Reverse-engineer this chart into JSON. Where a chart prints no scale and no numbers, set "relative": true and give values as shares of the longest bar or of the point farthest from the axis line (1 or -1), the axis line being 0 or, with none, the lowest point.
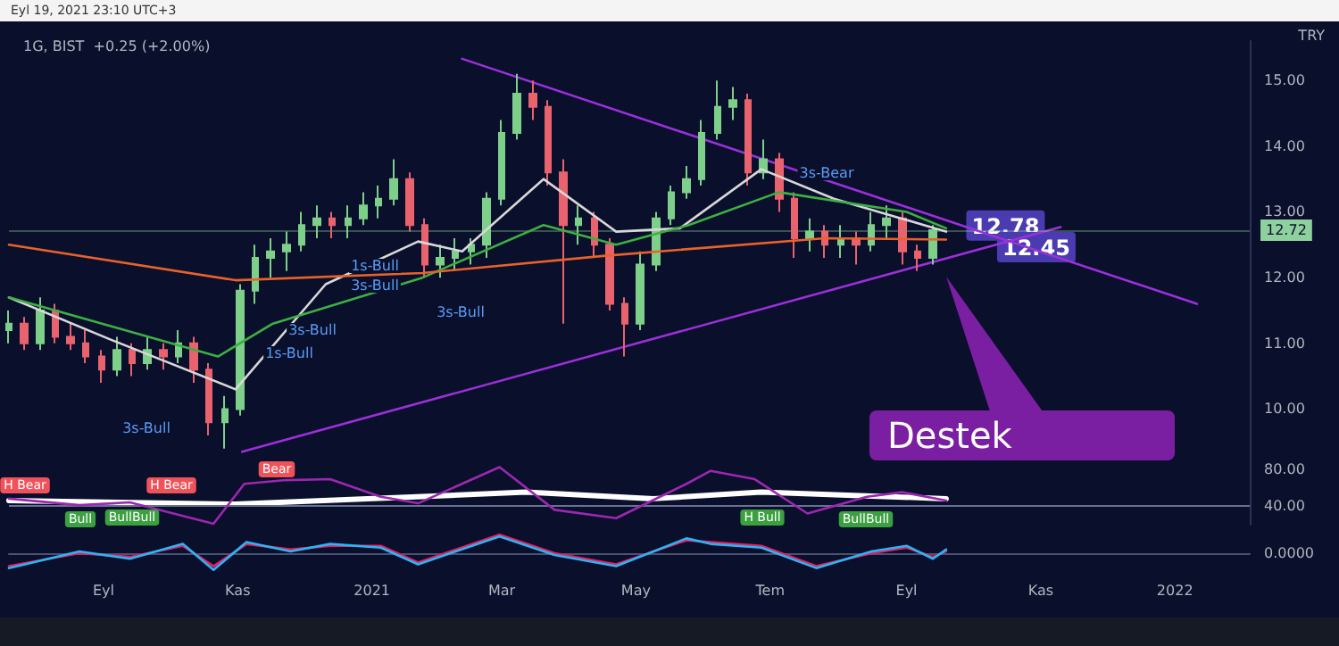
{
  "chart_data": [
    {
      "type": "candlestick",
      "title": "1G, BIST  +0.25 (+2.00%)",
      "subtitle": "Eyl 19, 2021 23:10 UTC+3",
      "xlim": [
        "2020-07-20",
        "2022-02-04"
      ],
      "ylim": [
        9.3,
        15.6
      ],
      "yticks": [
        {
          "value": 10,
          "label": "10.00"
        },
        {
          "value": 11,
          "label": "11.00"
        },
        {
          "value": 12,
          "label": "12.00"
        },
        {
          "value": 13,
          "label": "13.00"
        },
        {
          "value": 14,
          "label": "14.00"
        },
        {
          "value": 15,
          "label": "15.00"
        }
      ],
      "tick_labels": "y",
      "marker": "none",
      "line_style": "solid",
      "series": [
        {
          "x": [
            "2020-07-20",
            "2020-07-27",
            "2020-08-03",
            "2020-08-10",
            "2020-08-17",
            "2020-08-24",
            "2020-08-31",
            "2020-09-07",
            "2020-09-14",
            "2020-09-21",
            "2020-09-28",
            "2020-10-05",
            "2020-10-12",
            "2020-10-19",
            "2020-10-26",
            "2020-11-02",
            "2020-11-09",
            "2020-11-16",
            "2020-11-23",
            "2020-11-30",
            "2020-12-07",
            "2020-12-14",
            "2020-12-21",
            "2020-12-28",
            "2021-01-04",
            "2021-01-11",
            "2021-01-18",
            "2021-01-25",
            "2021-02-01",
            "2021-02-08",
            "2021-02-15",
            "2021-02-22",
            "2021-03-01",
            "2021-03-08",
            "2021-03-15",
            "2021-03-22",
            "2021-03-29",
            "2021-04-05",
            "2021-04-12",
            "2021-04-19",
            "2021-04-26",
            "2021-05-03",
            "2021-05-10",
            "2021-05-17",
            "2021-05-24",
            "2021-05-31",
            "2021-06-07",
            "2021-06-14",
            "2021-06-21",
            "2021-06-28",
            "2021-07-05",
            "2021-07-12",
            "2021-07-19",
            "2021-07-26",
            "2021-08-02",
            "2021-08-09",
            "2021-08-16",
            "2021-08-23",
            "2021-08-30",
            "2021-09-06",
            "2021-09-13"
          ],
          "ohlc": [
            [
              11.2,
              11.5,
              11.0,
              11.3
            ],
            [
              11.3,
              11.4,
              10.9,
              11.0
            ],
            [
              11.0,
              11.7,
              10.9,
              11.5
            ],
            [
              11.5,
              11.6,
              11.0,
              11.1
            ],
            [
              11.1,
              11.3,
              10.9,
              11.0
            ],
            [
              11.0,
              11.2,
              10.7,
              10.8
            ],
            [
              10.8,
              10.9,
              10.4,
              10.6
            ],
            [
              10.6,
              11.1,
              10.5,
              10.9
            ],
            [
              10.9,
              11.0,
              10.5,
              10.7
            ],
            [
              10.7,
              11.1,
              10.6,
              10.9
            ],
            [
              10.9,
              11.0,
              10.6,
              10.8
            ],
            [
              10.8,
              11.2,
              10.7,
              11.0
            ],
            [
              11.0,
              11.1,
              10.4,
              10.6
            ],
            [
              10.6,
              10.7,
              9.6,
              9.8
            ],
            [
              9.8,
              10.2,
              9.4,
              10.0
            ],
            [
              10.0,
              11.9,
              9.9,
              11.8
            ],
            [
              11.8,
              12.5,
              11.6,
              12.3
            ],
            [
              12.3,
              12.6,
              12.0,
              12.4
            ],
            [
              12.4,
              12.7,
              12.1,
              12.5
            ],
            [
              12.5,
              13.0,
              12.4,
              12.8
            ],
            [
              12.8,
              13.1,
              12.6,
              12.9
            ],
            [
              12.9,
              13.0,
              12.6,
              12.8
            ],
            [
              12.8,
              13.1,
              12.6,
              12.9
            ],
            [
              12.9,
              13.3,
              12.8,
              13.1
            ],
            [
              13.1,
              13.4,
              12.9,
              13.2
            ],
            [
              13.2,
              13.8,
              13.1,
              13.5
            ],
            [
              13.5,
              13.6,
              12.7,
              12.8
            ],
            [
              12.8,
              12.9,
              12.0,
              12.2
            ],
            [
              12.2,
              12.5,
              12.0,
              12.3
            ],
            [
              12.3,
              12.6,
              12.1,
              12.4
            ],
            [
              12.4,
              12.6,
              12.2,
              12.5
            ],
            [
              12.5,
              13.3,
              12.3,
              13.2
            ],
            [
              13.2,
              14.4,
              13.1,
              14.2
            ],
            [
              14.2,
              15.1,
              14.1,
              14.8
            ],
            [
              14.8,
              15.0,
              14.4,
              14.6
            ],
            [
              14.6,
              14.7,
              13.4,
              13.6
            ],
            [
              13.6,
              13.8,
              11.3,
              12.8
            ],
            [
              12.8,
              13.1,
              12.5,
              12.9
            ],
            [
              12.9,
              13.0,
              12.3,
              12.5
            ],
            [
              12.5,
              12.6,
              11.5,
              11.6
            ],
            [
              11.6,
              11.7,
              10.8,
              11.3
            ],
            [
              11.3,
              12.4,
              11.2,
              12.2
            ],
            [
              12.2,
              13.0,
              12.1,
              12.9
            ],
            [
              12.9,
              13.4,
              12.8,
              13.3
            ],
            [
              13.3,
              13.7,
              13.2,
              13.5
            ],
            [
              13.5,
              14.4,
              13.4,
              14.2
            ],
            [
              14.2,
              15.0,
              14.1,
              14.6
            ],
            [
              14.6,
              14.9,
              14.4,
              14.7
            ],
            [
              14.7,
              14.8,
              13.4,
              13.6
            ],
            [
              13.6,
              14.1,
              13.5,
              13.8
            ],
            [
              13.8,
              13.9,
              13.0,
              13.2
            ],
            [
              13.2,
              13.3,
              12.3,
              12.6
            ],
            [
              12.6,
              12.9,
              12.4,
              12.7
            ],
            [
              12.7,
              12.8,
              12.3,
              12.5
            ],
            [
              12.5,
              12.8,
              12.3,
              12.6
            ],
            [
              12.6,
              12.7,
              12.2,
              12.5
            ],
            [
              12.5,
              13.0,
              12.4,
              12.8
            ],
            [
              12.8,
              13.1,
              12.6,
              12.9
            ],
            [
              12.9,
              13.0,
              12.2,
              12.4
            ],
            [
              12.4,
              12.5,
              12.1,
              12.3
            ],
            [
              12.3,
              12.8,
              12.2,
              12.72
            ]
          ],
          "colors": [
            "#7ecf8a",
            "#e8636d",
            "#7ecf8a",
            "#e8636d",
            "#e8636d",
            "#e8636d",
            "#e8636d",
            "#7ecf8a",
            "#e8636d",
            "#7ecf8a",
            "#e8636d",
            "#7ecf8a",
            "#e8636d",
            "#e8636d",
            "#7ecf8a",
            "#7ecf8a",
            "#7ecf8a",
            "#7ecf8a",
            "#7ecf8a",
            "#7ecf8a",
            "#7ecf8a",
            "#e8636d",
            "#7ecf8a",
            "#7ecf8a",
            "#7ecf8a",
            "#7ecf8a",
            "#e8636d",
            "#e8636d",
            "#7ecf8a",
            "#7ecf8a",
            "#7ecf8a",
            "#7ecf8a",
            "#7ecf8a",
            "#7ecf8a",
            "#e8636d",
            "#e8636d",
            "#e8636d",
            "#7ecf8a",
            "#e8636d",
            "#e8636d",
            "#e8636d",
            "#7ecf8a",
            "#7ecf8a",
            "#7ecf8a",
            "#7ecf8a",
            "#7ecf8a",
            "#7ecf8a",
            "#7ecf8a",
            "#e8636d",
            "#7ecf8a",
            "#e8636d",
            "#e8636d",
            "#7ecf8a",
            "#e8636d",
            "#7ecf8a",
            "#e8636d",
            "#7ecf8a",
            "#7ecf8a",
            "#e8636d",
            "#e8636d",
            "#7ecf8a"
          ]
        },
        {
          "type": "line",
          "color": "#e8622a",
          "x": [
            "2020-07-20",
            "2020-10-31",
            "2021-01-24",
            "2021-04-16",
            "2021-07-26",
            "2021-09-19"
          ],
          "values": [
            12.5,
            11.96,
            12.07,
            12.33,
            12.6,
            12.58
          ]
        },
        {
          "type": "line",
          "color": "#3cb043",
          "x": [
            "2020-07-20",
            "2020-10-23",
            "2020-11-17",
            "2021-01-24",
            "2021-03-20",
            "2021-04-22",
            "2021-05-25",
            "2021-07-05",
            "2021-09-01",
            "2021-09-19"
          ],
          "values": [
            11.7,
            10.8,
            11.3,
            12.0,
            12.8,
            12.5,
            12.8,
            13.3,
            13.0,
            12.75
          ]
        },
        {
          "type": "line",
          "color": "#d8d8d8",
          "x": [
            "2020-07-20",
            "2020-09-04",
            "2020-10-31",
            "2020-12-11",
            "2021-01-22",
            "2021-02-11",
            "2021-03-20",
            "2021-04-22",
            "2021-05-21",
            "2021-06-27",
            "2021-07-30",
            "2021-09-19"
          ],
          "values": [
            11.7,
            11.06,
            10.3,
            11.9,
            12.55,
            12.4,
            13.5,
            12.7,
            12.75,
            13.65,
            13.2,
            12.7
          ]
        },
        {
          "type": "line",
          "color": "#9b30d9",
          "x": [
            "2021-02-11",
            "2022-01-11"
          ],
          "values": [
            15.33,
            11.6
          ]
        },
        {
          "type": "line",
          "color": "#9b30d9",
          "x": [
            "2020-11-03",
            "2021-11-10"
          ],
          "values": [
            9.35,
            12.77
          ]
        }
      ],
      "ref_lines": [
        {
          "axis": "y",
          "value": 12.72,
          "label": "12.72",
          "color": "#8fd19e"
        }
      ],
      "annotations": [
        {
          "text": "12.78",
          "x": "2021-10-16",
          "y": 12.78
        },
        {
          "text": "12.45",
          "x": "2021-10-30",
          "y": 12.45
        },
        "3s-Bull",
        "1s-Bull",
        "3s-Bull",
        "1s-Bull",
        "3s-Bull",
        "3s-Bull",
        "3s-Bear",
        "Destek",
        "TRY"
      ]
    },
    {
      "type": "line",
      "xlim": [
        "2020-07-20",
        "2022-02-04"
      ],
      "ylim": [
        20,
        95
      ],
      "yticks": [
        {
          "value": 40,
          "label": "40.00"
        },
        {
          "value": 80,
          "label": "80.00"
        }
      ],
      "tick_labels": "y",
      "marker": "none",
      "series": [
        {
          "color": "#9c27b0",
          "x": [
            "2020-07-20",
            "2020-08-21",
            "2020-09-13",
            "2020-10-21",
            "2020-11-04",
            "2020-11-23",
            "2020-12-13",
            "2021-01-05",
            "2021-01-22",
            "2021-02-28",
            "2021-03-25",
            "2021-04-22",
            "2021-05-24",
            "2021-06-04",
            "2021-06-24",
            "2021-07-18",
            "2021-08-14",
            "2021-08-30",
            "2021-09-19"
          ],
          "values": [
            48,
            41,
            44,
            21,
            64,
            68,
            69,
            50,
            43,
            82,
            36,
            27,
            64,
            78,
            69,
            32,
            50,
            55,
            46
          ]
        },
        {
          "color": "#ffffff",
          "x": [
            "2020-07-20",
            "2020-10-31",
            "2021-03-12",
            "2021-05-09",
            "2021-06-27",
            "2021-09-19"
          ],
          "values": [
            46,
            42,
            55,
            48,
            55,
            48
          ]
        }
      ],
      "ref_lines": [
        {
          "axis": "y",
          "value": 40
        }
      ],
      "annotations": [
        "H Bear",
        "Bull",
        "BullBull",
        "H Bear",
        "Bear",
        "H Bull",
        "BullBull"
      ]
    },
    {
      "type": "line",
      "relative": true,
      "xlim": [
        "2020-07-20",
        "2022-02-04"
      ],
      "xticks": [
        {
          "value": "2020-09-01",
          "label": "Eyl"
        },
        {
          "value": "2020-11-01",
          "label": "Kas"
        },
        {
          "value": "2021-01-01",
          "label": "2021"
        },
        {
          "value": "2021-03-01",
          "label": "Mar"
        },
        {
          "value": "2021-05-01",
          "label": "May"
        },
        {
          "value": "2021-07-01",
          "label": "Tem"
        },
        {
          "value": "2021-09-01",
          "label": "Eyl"
        },
        {
          "value": "2021-11-01",
          "label": "Kas"
        },
        {
          "value": "2022-01-01",
          "label": "2022"
        }
      ],
      "tick_labels": "x",
      "marker": "none",
      "series": [
        {
          "color": "#29b6f6",
          "x": [
            "2020-07-20",
            "2020-08-21",
            "2020-09-13",
            "2020-10-07",
            "2020-10-21",
            "2020-11-05",
            "2020-11-25",
            "2020-12-13",
            "2021-01-05",
            "2021-01-22",
            "2021-02-28",
            "2021-03-25",
            "2021-04-22",
            "2021-05-24",
            "2021-06-04",
            "2021-06-27",
            "2021-07-22",
            "2021-08-16",
            "2021-09-01",
            "2021-09-13",
            "2021-09-19"
          ],
          "values": [
            -0.8,
            0.1,
            -0.3,
            0.5,
            -0.9,
            0.6,
            0.1,
            0.5,
            0.3,
            -0.6,
            0.9,
            -0.1,
            -0.7,
            0.8,
            0.5,
            0.3,
            -0.8,
            0.1,
            0.4,
            -0.3,
            0.2
          ]
        },
        {
          "color": "#e91e63",
          "x": [
            "2020-07-20",
            "2020-08-21",
            "2020-09-13",
            "2020-10-07",
            "2020-10-21",
            "2020-11-05",
            "2020-11-25",
            "2020-12-13",
            "2021-01-05",
            "2021-01-22",
            "2021-02-28",
            "2021-03-25",
            "2021-04-22",
            "2021-05-24",
            "2021-06-04",
            "2021-06-27",
            "2021-07-22",
            "2021-08-16",
            "2021-09-01",
            "2021-09-13",
            "2021-09-19"
          ],
          "values": [
            -0.7,
            0,
            -0.2,
            0.4,
            -0.7,
            0.5,
            0.2,
            0.4,
            0.4,
            -0.5,
            1,
            0,
            -0.6,
            0.7,
            0.6,
            0.4,
            -0.7,
            0,
            0.3,
            -0.2,
            0.1
          ]
        }
      ],
      "annotations": [
        "0.0000"
      ]
    }
  ]
}
